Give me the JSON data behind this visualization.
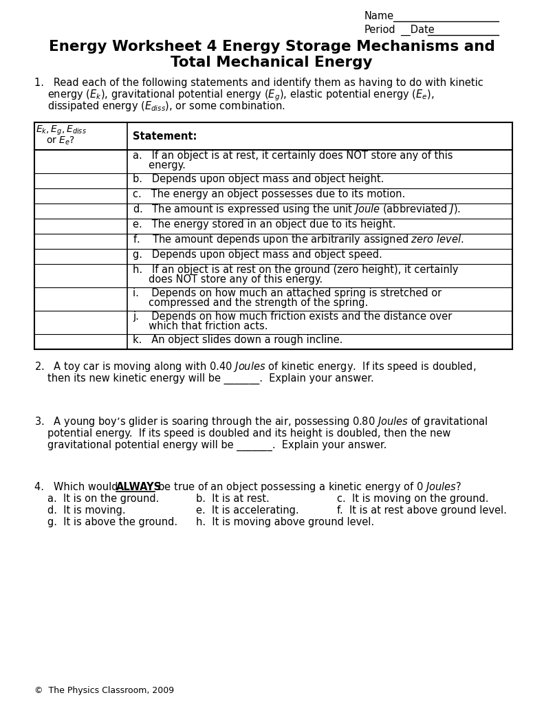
{
  "title_line1": "Energy Worksheet 4 Energy Storage Mechanisms and",
  "title_line2": "Total Mechanical Energy",
  "col2_header": "Statement:",
  "table_rows": [
    "a.   If an object is at rest, it certainly does NOT store any of this\n     energy.",
    "b.   Depends upon object mass and object height.",
    "c.   The energy an object possesses due to its motion.",
    "d.   The amount is expressed using the unit $\\mathit{Joule}$ (abbreviated $\\mathit{J}$).",
    "e.   The energy stored in an object due to its height.",
    "f.    The amount depends upon the arbitrarily assigned $\\mathit{zero\\ level}$.",
    "g.   Depends upon object mass and object speed.",
    "h.   If an object is at rest on the ground (zero height), it certainly\n     does NOT store any of this energy.",
    "i.    Depends on how much an attached spring is stretched or\n     compressed and the strength of the spring.",
    "j.    Depends on how much friction exists and the distance over\n     which that friction acts.",
    "k.   An object slides down a rough incline."
  ],
  "footer": "©  The Physics Classroom, 2009",
  "bg_color": "#ffffff",
  "text_color": "#000000",
  "font_size": 10.5,
  "title_font_size": 15.5
}
